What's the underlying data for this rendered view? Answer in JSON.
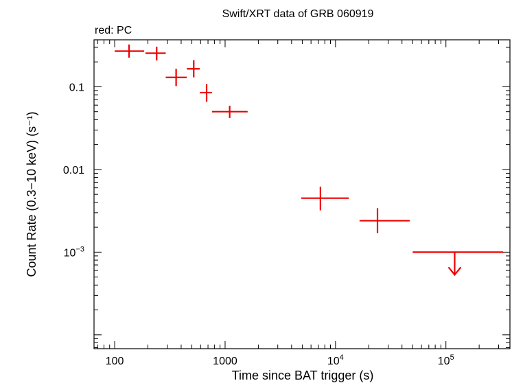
{
  "chart_data": {
    "type": "scatter",
    "title": "Swift/XRT data of GRB 060919",
    "subtitle": "red: PC",
    "xlabel": "Time since BAT trigger (s)",
    "ylabel": "Count Rate (0.3−10 keV) (s⁻¹)",
    "xscale": "log",
    "yscale": "log",
    "xlim": [
      65,
      380000
    ],
    "ylim": [
      6.8e-05,
      0.37
    ],
    "grid": false,
    "colors": {
      "series": "#ee0000",
      "axes": "#000000"
    },
    "x_ticks": [
      {
        "value": 100,
        "label": "100"
      },
      {
        "value": 1000,
        "label": "1000"
      },
      {
        "value": 10000,
        "label": "10",
        "sup": "4"
      },
      {
        "value": 100000,
        "label": "10",
        "sup": "5"
      }
    ],
    "y_ticks": [
      {
        "value": 0.1,
        "label": "0.1"
      },
      {
        "value": 0.01,
        "label": "0.01"
      },
      {
        "value": 0.001,
        "label": "10",
        "sup": "−3"
      }
    ],
    "series": [
      {
        "mode": "PC",
        "points": [
          {
            "x": 135,
            "xlo": 100,
            "xhi": 185,
            "y": 0.27,
            "ylo": 0.225,
            "yhi": 0.325
          },
          {
            "x": 240,
            "xlo": 190,
            "xhi": 290,
            "y": 0.255,
            "ylo": 0.208,
            "yhi": 0.305
          },
          {
            "x": 360,
            "xlo": 290,
            "xhi": 450,
            "y": 0.13,
            "ylo": 0.102,
            "yhi": 0.165
          },
          {
            "x": 520,
            "xlo": 450,
            "xhi": 590,
            "y": 0.165,
            "ylo": 0.13,
            "yhi": 0.21
          },
          {
            "x": 680,
            "xlo": 590,
            "xhi": 760,
            "y": 0.085,
            "ylo": 0.066,
            "yhi": 0.108
          },
          {
            "x": 1100,
            "xlo": 760,
            "xhi": 1600,
            "y": 0.05,
            "ylo": 0.042,
            "yhi": 0.059
          },
          {
            "x": 7300,
            "xlo": 4900,
            "xhi": 13200,
            "y": 0.0045,
            "ylo": 0.0032,
            "yhi": 0.0062
          },
          {
            "x": 24000,
            "xlo": 16500,
            "xhi": 47000,
            "y": 0.0024,
            "ylo": 0.0017,
            "yhi": 0.0034
          }
        ],
        "upper_limits": [
          {
            "x": 120000,
            "xlo": 50000,
            "xhi": 330000,
            "y": 0.001
          }
        ]
      }
    ]
  }
}
